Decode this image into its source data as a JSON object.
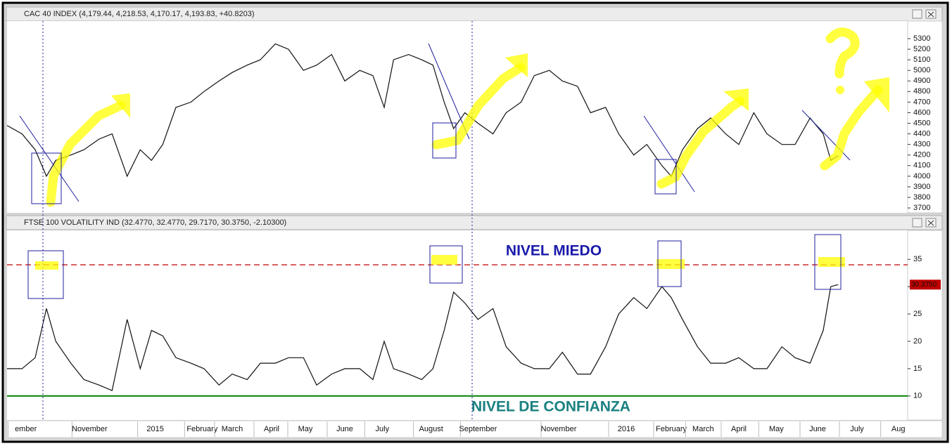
{
  "chart_data": [
    {
      "type": "line",
      "title": "CAC 40 INDEX (4,179.44, 4,218.53, 4,170.17, 4,193.83, +40.8203)",
      "color": "#111111",
      "x": [
        0,
        8,
        15,
        21,
        26,
        34,
        41,
        49,
        56,
        64,
        71,
        77,
        83,
        90,
        98,
        105,
        113,
        120,
        128,
        135,
        143,
        150,
        158,
        165,
        173,
        180,
        188,
        195,
        201,
        206,
        214,
        221,
        227,
        233,
        238,
        244,
        251,
        259,
        266,
        274,
        281,
        289,
        296,
        304,
        311,
        319,
        326,
        334,
        341,
        349,
        354,
        360,
        368,
        375,
        383,
        390,
        398,
        405,
        413,
        420,
        428,
        435,
        439,
        443
      ],
      "values": [
        4480,
        4400,
        4250,
        4000,
        4150,
        4200,
        4250,
        4350,
        4400,
        4000,
        4250,
        4150,
        4300,
        4650,
        4700,
        4800,
        4900,
        4980,
        5050,
        5100,
        5250,
        5200,
        5000,
        5050,
        5150,
        4900,
        5000,
        4950,
        4650,
        5100,
        5150,
        5100,
        5050,
        4700,
        4450,
        4600,
        4500,
        4400,
        4600,
        4700,
        4950,
        5000,
        4900,
        4850,
        4600,
        4650,
        4400,
        4200,
        4300,
        4100,
        4000,
        4250,
        4450,
        4550,
        4400,
        4300,
        4600,
        4400,
        4300,
        4300,
        4550,
        4400,
        4150,
        4193.83
      ],
      "xlim": [
        0,
        480
      ],
      "ylim": [
        3654,
        5466
      ],
      "yticks": [
        3700,
        3800,
        3900,
        4000,
        4100,
        4200,
        4300,
        4400,
        4500,
        4600,
        4700,
        4800,
        4900,
        5000,
        5100,
        5200,
        5300
      ]
    },
    {
      "type": "line",
      "title": "FTSE 100 VOLATILITY IND (32.4770, 32.4770, 29.7170, 30.3750, -2.10300)",
      "color": "#111111",
      "x": [
        0,
        8,
        15,
        21,
        26,
        34,
        41,
        49,
        56,
        64,
        71,
        77,
        83,
        90,
        98,
        105,
        113,
        120,
        128,
        135,
        143,
        150,
        158,
        165,
        173,
        180,
        188,
        195,
        201,
        206,
        214,
        221,
        227,
        233,
        238,
        244,
        251,
        259,
        266,
        274,
        281,
        289,
        296,
        304,
        311,
        319,
        326,
        334,
        341,
        349,
        354,
        360,
        368,
        375,
        383,
        390,
        398,
        405,
        413,
        420,
        428,
        435,
        439,
        443
      ],
      "values": [
        15,
        15,
        17,
        26,
        20,
        16,
        13,
        12,
        11,
        24,
        15,
        22,
        21,
        17,
        16,
        15,
        12,
        14,
        13,
        16,
        16,
        17,
        17,
        12,
        14,
        15,
        15,
        13,
        20,
        15,
        14,
        13,
        15,
        22,
        29,
        27,
        24,
        26,
        19,
        16,
        15,
        15,
        18,
        14,
        14,
        19,
        25,
        28,
        26,
        30,
        28,
        24,
        19,
        16,
        16,
        17,
        15,
        15,
        19,
        17,
        16,
        22,
        30,
        30.375
      ],
      "last": {
        "value": 30.375,
        "label": "30.3750"
      },
      "xlim": [
        0,
        480
      ],
      "ylim": [
        5.6,
        40.3
      ],
      "yticks": [
        10,
        15,
        20,
        25,
        30,
        35
      ],
      "reference_lines": [
        {
          "value": 34,
          "color": "#c00000",
          "label": "NIVEL MIEDO"
        },
        {
          "value": 10,
          "color": "#008000",
          "label": "NIVEL DE CONFIANZA"
        }
      ],
      "xticks": [
        {
          "value": 10,
          "label": "ember"
        },
        {
          "value": 44,
          "label": "November"
        },
        {
          "value": 79,
          "label": "2015"
        },
        {
          "value": 104,
          "label": "February"
        },
        {
          "value": 120,
          "label": "March"
        },
        {
          "value": 141,
          "label": "April"
        },
        {
          "value": 159,
          "label": "May"
        },
        {
          "value": 180,
          "label": "June"
        },
        {
          "value": 200,
          "label": "July"
        },
        {
          "value": 226,
          "label": "August"
        },
        {
          "value": 251,
          "label": "September"
        },
        {
          "value": 294,
          "label": "November"
        },
        {
          "value": 330,
          "label": "2016"
        },
        {
          "value": 354,
          "label": "February"
        },
        {
          "value": 371,
          "label": "March"
        },
        {
          "value": 390,
          "label": "April"
        },
        {
          "value": 410,
          "label": "May"
        },
        {
          "value": 432,
          "label": "June"
        },
        {
          "value": 453,
          "label": "July"
        },
        {
          "value": 475,
          "label": "Aug"
        }
      ]
    }
  ]
}
